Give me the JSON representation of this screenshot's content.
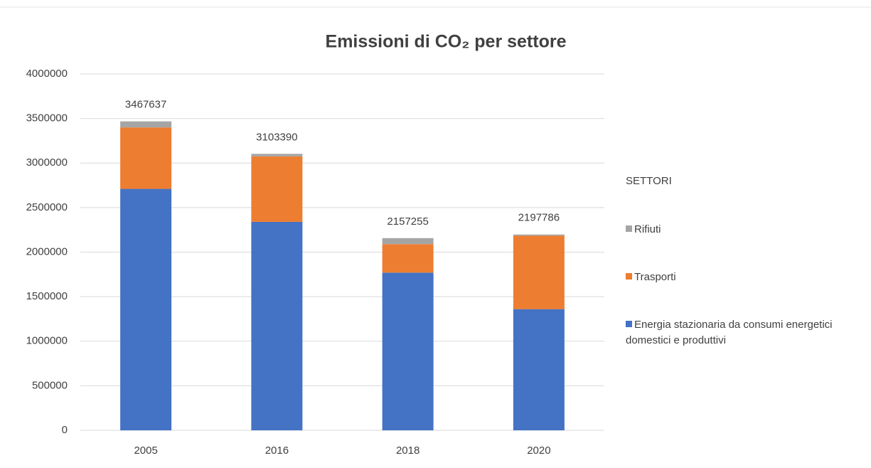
{
  "chart_data": {
    "type": "stacked_bar",
    "title": "Emissioni di CO₂ per settore",
    "categories": [
      "2005",
      "2016",
      "2018",
      "2020"
    ],
    "series": [
      {
        "name": "Energia stazionaria da consumi energetici domestici e produttivi",
        "color": "#4472c4",
        "values": [
          2710000,
          2340000,
          1770000,
          1360000
        ]
      },
      {
        "name": "Trasporti",
        "color": "#ed7d31",
        "values": [
          690000,
          735000,
          320000,
          825000
        ]
      },
      {
        "name": "Rifiuti",
        "color": "#a5a5a5",
        "values": [
          67637,
          28390,
          67255,
          12786
        ]
      }
    ],
    "totals": [
      3467637,
      3103390,
      2157255,
      2197786
    ],
    "legend_title": "SETTORI",
    "legend": "right",
    "ylim": [
      0,
      4000000
    ],
    "yticks": [
      0,
      500000,
      1000000,
      1500000,
      2000000,
      2500000,
      3000000,
      3500000,
      4000000
    ],
    "grid": true
  }
}
